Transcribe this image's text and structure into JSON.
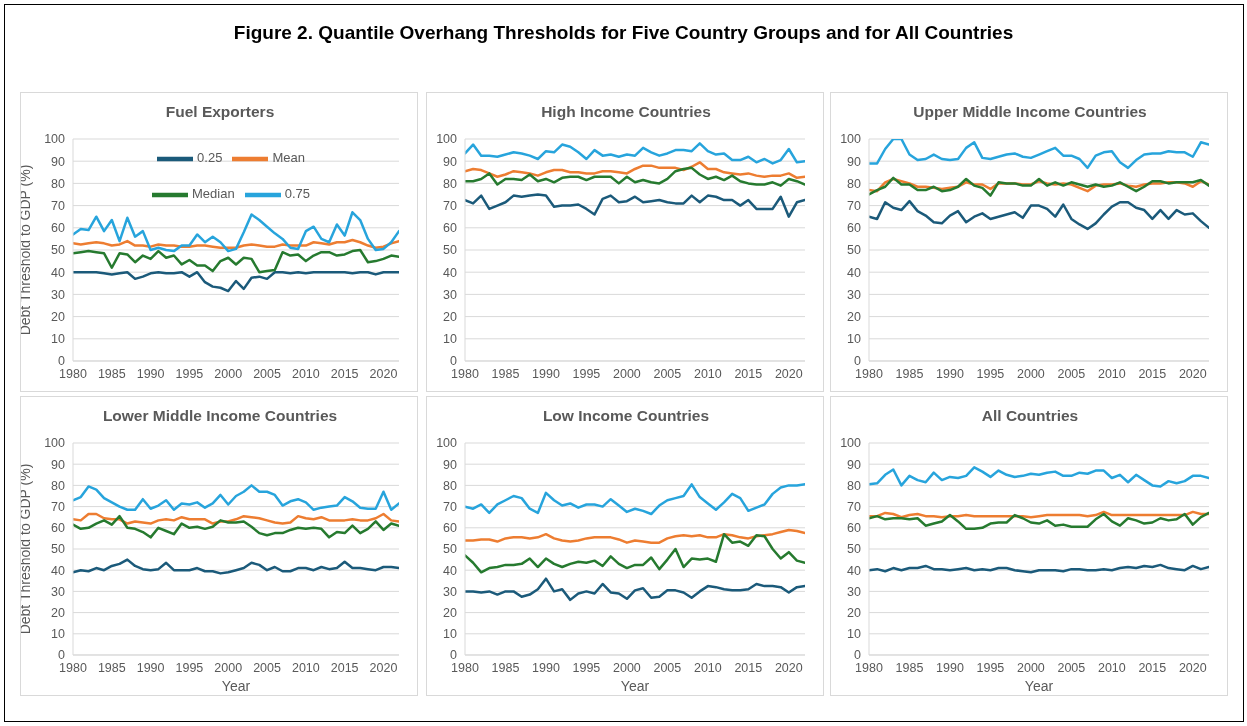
{
  "chart_data": [
    {
      "type": "other",
      "title": "Figure 2. Quantile Overhang Thresholds for Five Country Groups and for All Countries"
    },
    {
      "type": "line",
      "title": "Fuel Exporters",
      "ylabel": "Debt Threshold to GDP (%)",
      "x": [
        1980,
        1981,
        1982,
        1983,
        1984,
        1985,
        1986,
        1987,
        1988,
        1989,
        1990,
        1991,
        1992,
        1993,
        1994,
        1995,
        1996,
        1997,
        1998,
        1999,
        2000,
        2001,
        2002,
        2003,
        2004,
        2005,
        2006,
        2007,
        2008,
        2009,
        2010,
        2011,
        2012,
        2013,
        2014,
        2015,
        2016,
        2017,
        2018,
        2019,
        2020,
        2021,
        2022
      ],
      "xlim": [
        1980,
        2022
      ],
      "xticks": [
        1980,
        1985,
        1990,
        1995,
        2000,
        2005,
        2010,
        2015,
        2020
      ],
      "ylim": [
        0,
        100
      ],
      "yticks": [
        0,
        10,
        20,
        30,
        40,
        50,
        60,
        70,
        80,
        90,
        100
      ],
      "grid": "y",
      "legend": "top",
      "series": [
        {
          "name": "0.25",
          "color": "#1b5a7a",
          "values": [
            40,
            40,
            40,
            40,
            39.5,
            39,
            39.5,
            40,
            37,
            38,
            39.5,
            40,
            39.5,
            39.5,
            40,
            38,
            40,
            35.5,
            33.5,
            33,
            31.5,
            36,
            32.5,
            37.5,
            38,
            37,
            40,
            40,
            39.5,
            40,
            39.5,
            40,
            40,
            40,
            40,
            40,
            39.5,
            40,
            40,
            39,
            40,
            40,
            40
          ]
        },
        {
          "name": "Mean",
          "color": "#ed7d31",
          "values": [
            53,
            52.5,
            53,
            53.5,
            53,
            52,
            52.5,
            54,
            52,
            52,
            51.5,
            52.5,
            52,
            52,
            51.5,
            51.5,
            52,
            52,
            51.5,
            51,
            51,
            51,
            52,
            52.5,
            52,
            51.5,
            51.5,
            52.5,
            52,
            52,
            52,
            53.5,
            53,
            52.5,
            53.5,
            53.5,
            54.5,
            53.5,
            52,
            51,
            51.5,
            53,
            54
          ]
        },
        {
          "name": "Median",
          "color": "#267a2f",
          "values": [
            48.5,
            49,
            49.5,
            49,
            48.5,
            42,
            48.5,
            48,
            44.5,
            47.5,
            46,
            49.5,
            46.5,
            47.5,
            43.5,
            45.5,
            43,
            43,
            40.5,
            45,
            46.5,
            43.5,
            46.5,
            46,
            40,
            40.5,
            41,
            49,
            47.5,
            48,
            45,
            47.5,
            49,
            49,
            47.5,
            48,
            49.5,
            50,
            44.5,
            45,
            46,
            47.5,
            47
          ]
        },
        {
          "name": "0.75",
          "color": "#27a4dc",
          "values": [
            57,
            59.5,
            59,
            65,
            58.5,
            63.5,
            54,
            64.5,
            56,
            58.5,
            50,
            51,
            50,
            49.5,
            52,
            52,
            57,
            53.5,
            56,
            53.5,
            49.5,
            50.5,
            58,
            66,
            63.5,
            60.5,
            57.5,
            55,
            51,
            50.5,
            58.5,
            60.5,
            55,
            53.5,
            61.5,
            56.5,
            67,
            63.5,
            55,
            50,
            50.5,
            53.5,
            58.5
          ]
        }
      ]
    },
    {
      "type": "line",
      "title": "High Income Countries",
      "x": [
        1980,
        1981,
        1982,
        1983,
        1984,
        1985,
        1986,
        1987,
        1988,
        1989,
        1990,
        1991,
        1992,
        1993,
        1994,
        1995,
        1996,
        1997,
        1998,
        1999,
        2000,
        2001,
        2002,
        2003,
        2004,
        2005,
        2006,
        2007,
        2008,
        2009,
        2010,
        2011,
        2012,
        2013,
        2014,
        2015,
        2016,
        2017,
        2018,
        2019,
        2020,
        2021,
        2022
      ],
      "xlim": [
        1980,
        2022
      ],
      "xticks": [
        1980,
        1985,
        1990,
        1995,
        2000,
        2005,
        2010,
        2015,
        2020
      ],
      "ylim": [
        0,
        100
      ],
      "yticks": [
        0,
        10,
        20,
        30,
        40,
        50,
        60,
        70,
        80,
        90,
        100
      ],
      "grid": "y",
      "series": [
        {
          "color": "#1b5a7a",
          "values": [
            72.5,
            71,
            74.5,
            68.5,
            70,
            71.5,
            74.5,
            74,
            74.5,
            75,
            74.5,
            69.5,
            70,
            70,
            70.5,
            68.5,
            66,
            73,
            74.5,
            71.5,
            72,
            74,
            71.5,
            72,
            72.5,
            71.5,
            71,
            71,
            74.5,
            71.5,
            74.5,
            74,
            72.5,
            72.5,
            70,
            72.5,
            68.5,
            68.5,
            68.5,
            74,
            65,
            71.5,
            72.5
          ]
        },
        {
          "color": "#ed7d31",
          "values": [
            85.5,
            86.5,
            86,
            84.5,
            83,
            84,
            85.5,
            85,
            84.5,
            83.5,
            85,
            86,
            86,
            85,
            85,
            84.5,
            84.5,
            85.5,
            85.5,
            85,
            84.5,
            86.5,
            88,
            88,
            87,
            87,
            87,
            86,
            87.5,
            89.5,
            86.5,
            86.5,
            85,
            84.5,
            84,
            84.5,
            83.5,
            83,
            83.5,
            83.5,
            84.5,
            82.5,
            83
          ]
        },
        {
          "color": "#267a2f",
          "values": [
            81,
            81,
            82,
            84.5,
            79.5,
            82,
            82,
            81.5,
            84,
            81,
            82,
            80.5,
            82.5,
            83,
            83,
            81.5,
            83,
            83,
            83,
            80,
            83,
            80.5,
            81.5,
            80.5,
            80,
            82,
            85.5,
            86.5,
            87,
            84,
            82,
            83,
            81.5,
            83.5,
            81,
            80,
            79.5,
            79.5,
            80.5,
            79,
            82,
            81,
            79.5
          ]
        },
        {
          "color": "#27a4dc",
          "values": [
            93.5,
            97.5,
            92.5,
            92.5,
            92,
            93,
            94,
            93.5,
            92.5,
            91,
            94.5,
            94,
            97.5,
            96.5,
            94,
            91,
            95,
            92.5,
            93,
            92,
            93,
            92.5,
            96,
            94,
            92.5,
            93.5,
            95,
            95,
            94.5,
            98,
            94.5,
            93,
            93.5,
            90.5,
            90.5,
            92,
            89.5,
            91,
            89,
            90.5,
            95.5,
            89.5,
            90
          ]
        }
      ]
    },
    {
      "type": "line",
      "title": "Upper Middle Income Countries",
      "x": [
        1980,
        1981,
        1982,
        1983,
        1984,
        1985,
        1986,
        1987,
        1988,
        1989,
        1990,
        1991,
        1992,
        1993,
        1994,
        1995,
        1996,
        1997,
        1998,
        1999,
        2000,
        2001,
        2002,
        2003,
        2004,
        2005,
        2006,
        2007,
        2008,
        2009,
        2010,
        2011,
        2012,
        2013,
        2014,
        2015,
        2016,
        2017,
        2018,
        2019,
        2020,
        2021,
        2022
      ],
      "xlim": [
        1980,
        2022
      ],
      "xticks": [
        1980,
        1985,
        1990,
        1995,
        2000,
        2005,
        2010,
        2015,
        2020
      ],
      "ylim": [
        0,
        100
      ],
      "yticks": [
        0,
        10,
        20,
        30,
        40,
        50,
        60,
        70,
        80,
        90,
        100
      ],
      "grid": "y",
      "series": [
        {
          "color": "#1b5a7a",
          "values": [
            65,
            64,
            71.5,
            69,
            68,
            72,
            67.5,
            65.5,
            62.5,
            62,
            65.5,
            67.5,
            62.5,
            65,
            66.5,
            64,
            65,
            66,
            67,
            64.5,
            70,
            70,
            68.5,
            65,
            70.5,
            64,
            61.5,
            59.5,
            62,
            66,
            69.5,
            71.5,
            71.5,
            69,
            68,
            64,
            68,
            64,
            68,
            66,
            66.5,
            63,
            60
          ]
        },
        {
          "color": "#ed7d31",
          "values": [
            77,
            76.5,
            80.5,
            82,
            81,
            80,
            78.5,
            78.5,
            78,
            77.5,
            78,
            78.5,
            80.5,
            79.5,
            79.5,
            77.5,
            80,
            80,
            80,
            79.5,
            79.5,
            81,
            80,
            79.5,
            80,
            79.5,
            78,
            76.5,
            79,
            79.5,
            79.5,
            80,
            79,
            78.5,
            79.5,
            80,
            80,
            80.5,
            80.5,
            80,
            78.5,
            81,
            79.5
          ]
        },
        {
          "color": "#267a2f",
          "values": [
            75,
            77,
            78.5,
            82.5,
            79.5,
            79.5,
            77,
            77,
            78.5,
            76.5,
            77,
            78.5,
            82,
            79,
            78,
            74.5,
            80.5,
            80,
            80,
            79,
            79,
            82,
            79,
            80.5,
            79,
            80.5,
            79.5,
            78.5,
            79.5,
            78.5,
            79,
            80.5,
            78.5,
            76.5,
            78.5,
            81,
            81,
            80,
            80.5,
            80.5,
            80.5,
            81.5,
            79
          ]
        },
        {
          "color": "#27a4dc",
          "values": [
            89,
            89,
            95.5,
            100,
            100,
            93,
            90.5,
            91,
            93,
            91,
            90.5,
            91,
            96,
            98.5,
            91.5,
            91,
            92,
            93,
            93.5,
            92,
            91.5,
            93,
            94.5,
            96,
            92.5,
            92.5,
            91,
            87,
            92.5,
            94,
            94.5,
            89.5,
            87,
            90.5,
            93,
            93.5,
            93.5,
            94.5,
            94,
            94,
            92,
            98.5,
            97.5
          ]
        }
      ]
    },
    {
      "type": "line",
      "title": "Lower Middle Income Countries",
      "xlabel": "Year",
      "ylabel": "Debt Threshold to GDP (%)",
      "x": [
        1980,
        1981,
        1982,
        1983,
        1984,
        1985,
        1986,
        1987,
        1988,
        1989,
        1990,
        1991,
        1992,
        1993,
        1994,
        1995,
        1996,
        1997,
        1998,
        1999,
        2000,
        2001,
        2002,
        2003,
        2004,
        2005,
        2006,
        2007,
        2008,
        2009,
        2010,
        2011,
        2012,
        2013,
        2014,
        2015,
        2016,
        2017,
        2018,
        2019,
        2020,
        2021,
        2022
      ],
      "xlim": [
        1980,
        2022
      ],
      "xticks": [
        1980,
        1985,
        1990,
        1995,
        2000,
        2005,
        2010,
        2015,
        2020
      ],
      "ylim": [
        0,
        100
      ],
      "yticks": [
        0,
        10,
        20,
        30,
        40,
        50,
        60,
        70,
        80,
        90,
        100
      ],
      "grid": "y",
      "series": [
        {
          "color": "#1b5a7a",
          "values": [
            39,
            40,
            39.5,
            41,
            40,
            42,
            43,
            45,
            42,
            40.5,
            40,
            40.5,
            43.5,
            40,
            40,
            40,
            41,
            39.5,
            39.5,
            38.5,
            39,
            40,
            41,
            43.5,
            42.5,
            40,
            41.5,
            39.5,
            39.5,
            41,
            41,
            40,
            41.5,
            40.5,
            41,
            44,
            41,
            41,
            40.5,
            40,
            41.5,
            41.5,
            41
          ]
        },
        {
          "color": "#ed7d31",
          "values": [
            64,
            63.5,
            66.5,
            66.5,
            64.5,
            64,
            64,
            62,
            63,
            62.5,
            62,
            63.5,
            64,
            63.5,
            65,
            64,
            64,
            64,
            62,
            63,
            63,
            64,
            65.5,
            65,
            64.5,
            63.5,
            62.5,
            62,
            62.5,
            65.5,
            64.5,
            64,
            65,
            63.5,
            63.5,
            63.5,
            64,
            63.5,
            63.5,
            64.5,
            66.5,
            63.5,
            63
          ]
        },
        {
          "color": "#267a2f",
          "values": [
            61.5,
            59.5,
            60,
            62,
            63.5,
            61.5,
            65.5,
            60,
            59.5,
            58,
            55.5,
            60,
            58.5,
            57,
            62,
            60,
            60.5,
            59.5,
            60.5,
            63.5,
            62.5,
            62.5,
            63,
            60.5,
            57.5,
            56.5,
            57.5,
            57.5,
            59,
            60,
            59.5,
            60,
            59.5,
            55.5,
            58,
            57.5,
            61,
            57.5,
            59.5,
            63,
            59,
            62,
            61
          ]
        },
        {
          "color": "#27a4dc",
          "values": [
            73,
            74.5,
            79.5,
            78,
            74,
            72,
            70,
            68.5,
            68.5,
            73.5,
            69,
            70.5,
            73,
            68.5,
            71.5,
            71,
            72,
            69.5,
            71.5,
            75.5,
            71,
            75,
            77,
            80,
            77,
            77,
            75.5,
            70.5,
            72.5,
            73.5,
            72,
            68.5,
            69.5,
            70,
            70.5,
            74.5,
            72.5,
            69.5,
            69,
            69,
            77,
            68.5,
            71.5
          ]
        }
      ]
    },
    {
      "type": "line",
      "title": "Low Income Countries",
      "xlabel": "Year",
      "x": [
        1980,
        1981,
        1982,
        1983,
        1984,
        1985,
        1986,
        1987,
        1988,
        1989,
        1990,
        1991,
        1992,
        1993,
        1994,
        1995,
        1996,
        1997,
        1998,
        1999,
        2000,
        2001,
        2002,
        2003,
        2004,
        2005,
        2006,
        2007,
        2008,
        2009,
        2010,
        2011,
        2012,
        2013,
        2014,
        2015,
        2016,
        2017,
        2018,
        2019,
        2020,
        2021,
        2022
      ],
      "xlim": [
        1980,
        2022
      ],
      "xticks": [
        1980,
        1985,
        1990,
        1995,
        2000,
        2005,
        2010,
        2015,
        2020
      ],
      "ylim": [
        0,
        100
      ],
      "yticks": [
        0,
        10,
        20,
        30,
        40,
        50,
        60,
        70,
        80,
        90,
        100
      ],
      "grid": "y",
      "series": [
        {
          "color": "#1b5a7a",
          "values": [
            30,
            30,
            29.5,
            30,
            28.5,
            30,
            30,
            27.5,
            28.5,
            31,
            36,
            30,
            31,
            26,
            29,
            30,
            29,
            33.5,
            29.5,
            29,
            26.5,
            30.5,
            31.5,
            27,
            27.5,
            30.5,
            30.5,
            29.5,
            27,
            30,
            32.5,
            32,
            31,
            30.5,
            30.5,
            31,
            33.5,
            32.5,
            32.5,
            32,
            29.5,
            32,
            32.5
          ]
        },
        {
          "color": "#ed7d31",
          "values": [
            54,
            54,
            54.5,
            54.5,
            53.5,
            55,
            55.5,
            55.5,
            55,
            55.5,
            57,
            55,
            54,
            53.5,
            54,
            55,
            55.5,
            55.5,
            55.5,
            54.5,
            53,
            54,
            53.5,
            53,
            53,
            55,
            56,
            56.5,
            56,
            56.5,
            55.5,
            55.5,
            57,
            56.5,
            55.5,
            55,
            56,
            56.5,
            57,
            58,
            59,
            58.5,
            57.5
          ]
        },
        {
          "color": "#267a2f",
          "values": [
            47,
            43.5,
            39,
            41,
            41.5,
            42.5,
            42.5,
            43,
            45.5,
            41.5,
            45.5,
            43,
            41.5,
            43,
            44,
            43.5,
            44.5,
            42,
            46.5,
            43,
            41,
            42.5,
            42.5,
            46,
            40.5,
            45,
            50,
            41.5,
            45.5,
            45,
            45.5,
            44,
            57,
            53,
            53.5,
            51.5,
            56.5,
            56,
            50,
            45.5,
            48.5,
            44.5,
            43.5
          ]
        },
        {
          "color": "#27a4dc",
          "values": [
            70,
            69,
            71,
            67,
            71,
            73,
            75,
            74,
            69,
            67,
            76.5,
            73,
            70.5,
            71.5,
            69.5,
            71,
            71,
            70,
            73.5,
            70.5,
            67.5,
            69,
            68,
            66.5,
            70.5,
            73,
            74,
            75,
            80.5,
            74.5,
            71.5,
            68.5,
            72,
            76,
            74,
            68,
            69.5,
            71,
            76,
            79,
            80,
            80,
            80.5
          ]
        }
      ]
    },
    {
      "type": "line",
      "title": "All Countries",
      "xlabel": "Year",
      "x": [
        1980,
        1981,
        1982,
        1983,
        1984,
        1985,
        1986,
        1987,
        1988,
        1989,
        1990,
        1991,
        1992,
        1993,
        1994,
        1995,
        1996,
        1997,
        1998,
        1999,
        2000,
        2001,
        2002,
        2003,
        2004,
        2005,
        2006,
        2007,
        2008,
        2009,
        2010,
        2011,
        2012,
        2013,
        2014,
        2015,
        2016,
        2017,
        2018,
        2019,
        2020,
        2021,
        2022
      ],
      "xlim": [
        1980,
        2022
      ],
      "xticks": [
        1980,
        1985,
        1990,
        1995,
        2000,
        2005,
        2010,
        2015,
        2020
      ],
      "ylim": [
        0,
        100
      ],
      "yticks": [
        0,
        10,
        20,
        30,
        40,
        50,
        60,
        70,
        80,
        90,
        100
      ],
      "grid": "y",
      "series": [
        {
          "color": "#1b5a7a",
          "values": [
            40,
            40.5,
            39.5,
            41,
            40,
            41,
            41,
            42,
            40.5,
            40.5,
            40,
            40.5,
            41,
            40,
            40.5,
            40,
            41,
            41,
            40,
            39.5,
            39,
            40,
            40,
            40,
            39.5,
            40.5,
            40.5,
            40,
            40,
            40.5,
            40,
            41,
            41.5,
            41,
            42,
            41.5,
            42.5,
            41,
            40.5,
            40,
            42,
            40.5,
            41.5
          ]
        },
        {
          "color": "#ed7d31",
          "values": [
            65.5,
            65.5,
            67,
            66.5,
            65,
            66,
            66.5,
            65.5,
            65.5,
            65,
            65.5,
            65.5,
            66,
            65.5,
            65.5,
            65.5,
            65.5,
            65.5,
            65.5,
            65.5,
            65,
            65.5,
            66,
            66,
            66,
            66,
            66,
            65.5,
            66,
            67.5,
            66,
            66,
            66,
            66,
            66,
            66,
            66,
            66,
            66,
            66,
            67.5,
            66.5,
            66.5
          ]
        },
        {
          "color": "#267a2f",
          "values": [
            64.5,
            65.5,
            64,
            64.5,
            64.5,
            64,
            64.5,
            61,
            62,
            63,
            66,
            63,
            59.5,
            59.5,
            60,
            62,
            62.5,
            62.5,
            66,
            64.5,
            62.5,
            62,
            63.5,
            61,
            61.5,
            60.5,
            60.5,
            60.5,
            64,
            66.5,
            63,
            61,
            64.5,
            63.5,
            62,
            62.5,
            64.5,
            63.5,
            64,
            66.5,
            61.5,
            65,
            67
          ]
        },
        {
          "color": "#27a4dc",
          "values": [
            80.5,
            81,
            85,
            87.5,
            80,
            84.5,
            82.5,
            81.5,
            86,
            82.5,
            84,
            83.5,
            84.5,
            88.5,
            86.5,
            84,
            87,
            85,
            84,
            84.5,
            85.5,
            85,
            86,
            86.5,
            84.5,
            84.5,
            86,
            85.5,
            87,
            87,
            83.5,
            85,
            81.5,
            85,
            82.5,
            80,
            79.5,
            82,
            81,
            82,
            84.5,
            84.5,
            83.5
          ]
        }
      ]
    }
  ]
}
